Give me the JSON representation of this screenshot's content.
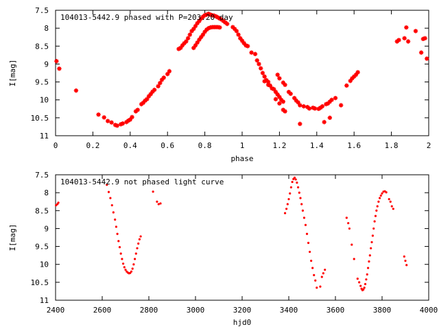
{
  "chart_data": [
    {
      "type": "scatter",
      "title": "104013-5442.9 phased with P=203.20 day",
      "xlabel": "phase",
      "ylabel": "I[mag]",
      "xlim": [
        0,
        2
      ],
      "ylim": [
        11,
        7.5
      ],
      "y_inverted": true,
      "xticks": [
        "0",
        "0.2",
        "0.4",
        "0.6",
        "0.8",
        "1",
        "1.2",
        "1.4",
        "1.6",
        "1.8",
        "2"
      ],
      "xtick_values": [
        0,
        0.2,
        0.4,
        0.6,
        0.8,
        1.0,
        1.2,
        1.4,
        1.6,
        1.8,
        2.0
      ],
      "yticks": [
        "7.5",
        "8",
        "8.5",
        "9",
        "9.5",
        "10",
        "10.5",
        "11"
      ],
      "ytick_values": [
        7.5,
        8,
        8.5,
        9,
        9.5,
        10,
        10.5,
        11
      ],
      "marker": "star",
      "marker_color": "#ff0000",
      "points": [
        [
          0.005,
          8.92
        ],
        [
          0.02,
          9.13
        ],
        [
          0.11,
          9.74
        ],
        [
          0.23,
          10.41
        ],
        [
          0.26,
          10.49
        ],
        [
          0.28,
          10.59
        ],
        [
          0.3,
          10.63
        ],
        [
          0.32,
          10.7
        ],
        [
          0.33,
          10.72
        ],
        [
          0.35,
          10.68
        ],
        [
          0.36,
          10.66
        ],
        [
          0.38,
          10.62
        ],
        [
          0.39,
          10.58
        ],
        [
          0.4,
          10.55
        ],
        [
          0.41,
          10.48
        ],
        [
          0.43,
          10.32
        ],
        [
          0.44,
          10.28
        ],
        [
          0.46,
          10.12
        ],
        [
          0.47,
          10.08
        ],
        [
          0.48,
          10.02
        ],
        [
          0.49,
          9.98
        ],
        [
          0.5,
          9.9
        ],
        [
          0.51,
          9.84
        ],
        [
          0.52,
          9.77
        ],
        [
          0.53,
          9.72
        ],
        [
          0.55,
          9.62
        ],
        [
          0.56,
          9.53
        ],
        [
          0.57,
          9.44
        ],
        [
          0.58,
          9.38
        ],
        [
          0.6,
          9.28
        ],
        [
          0.61,
          9.2
        ],
        [
          0.66,
          8.58
        ],
        [
          0.67,
          8.55
        ],
        [
          0.68,
          8.48
        ],
        [
          0.69,
          8.42
        ],
        [
          0.7,
          8.37
        ],
        [
          0.71,
          8.28
        ],
        [
          0.72,
          8.18
        ],
        [
          0.73,
          8.08
        ],
        [
          0.74,
          8.02
        ],
        [
          0.75,
          7.94
        ],
        [
          0.76,
          7.86
        ],
        [
          0.77,
          7.8
        ],
        [
          0.78,
          7.73
        ],
        [
          0.79,
          7.68
        ],
        [
          0.8,
          7.64
        ],
        [
          0.81,
          7.62
        ],
        [
          0.82,
          7.6
        ],
        [
          0.83,
          7.62
        ],
        [
          0.84,
          7.64
        ],
        [
          0.85,
          7.65
        ],
        [
          0.86,
          7.67
        ],
        [
          0.87,
          7.7
        ],
        [
          0.88,
          7.73
        ],
        [
          0.89,
          7.76
        ],
        [
          0.9,
          7.8
        ],
        [
          0.91,
          7.84
        ],
        [
          0.92,
          7.88
        ],
        [
          0.74,
          8.55
        ],
        [
          0.75,
          8.48
        ],
        [
          0.76,
          8.4
        ],
        [
          0.77,
          8.32
        ],
        [
          0.78,
          8.25
        ],
        [
          0.79,
          8.18
        ],
        [
          0.8,
          8.1
        ],
        [
          0.81,
          8.04
        ],
        [
          0.82,
          8.0
        ],
        [
          0.83,
          7.98
        ],
        [
          0.84,
          7.97
        ],
        [
          0.85,
          7.97
        ],
        [
          0.86,
          7.97
        ],
        [
          0.87,
          7.97
        ],
        [
          0.88,
          7.98
        ],
        [
          0.95,
          7.97
        ],
        [
          0.96,
          8.02
        ],
        [
          0.97,
          8.08
        ],
        [
          0.98,
          8.18
        ],
        [
          0.99,
          8.28
        ],
        [
          1.0,
          8.35
        ],
        [
          1.01,
          8.42
        ],
        [
          1.02,
          8.48
        ],
        [
          1.03,
          8.5
        ],
        [
          1.05,
          8.68
        ],
        [
          1.07,
          8.72
        ],
        [
          1.08,
          8.9
        ],
        [
          1.09,
          9.0
        ],
        [
          1.1,
          9.12
        ],
        [
          1.11,
          9.25
        ],
        [
          1.12,
          9.35
        ],
        [
          1.13,
          9.45
        ],
        [
          1.14,
          9.5
        ],
        [
          1.15,
          9.6
        ],
        [
          1.17,
          9.7
        ],
        [
          1.18,
          9.78
        ],
        [
          1.19,
          9.85
        ],
        [
          1.2,
          9.92
        ],
        [
          1.21,
          10.0
        ],
        [
          1.22,
          10.05
        ],
        [
          1.12,
          9.48
        ],
        [
          1.14,
          9.58
        ],
        [
          1.16,
          9.68
        ],
        [
          1.18,
          9.98
        ],
        [
          1.2,
          10.1
        ],
        [
          1.22,
          10.28
        ],
        [
          1.23,
          10.32
        ],
        [
          1.19,
          9.3
        ],
        [
          1.2,
          9.4
        ],
        [
          1.22,
          9.52
        ],
        [
          1.23,
          9.58
        ],
        [
          1.25,
          9.78
        ],
        [
          1.26,
          9.83
        ],
        [
          1.28,
          9.95
        ],
        [
          1.29,
          10.02
        ],
        [
          1.3,
          10.07
        ],
        [
          1.31,
          10.15
        ],
        [
          1.33,
          10.18
        ],
        [
          1.35,
          10.2
        ],
        [
          1.36,
          10.24
        ],
        [
          1.38,
          10.22
        ],
        [
          1.39,
          10.24
        ],
        [
          1.41,
          10.25
        ],
        [
          1.42,
          10.22
        ],
        [
          1.43,
          10.18
        ],
        [
          1.45,
          10.12
        ],
        [
          1.46,
          10.1
        ],
        [
          1.47,
          10.05
        ],
        [
          1.48,
          10.0
        ],
        [
          1.5,
          9.95
        ],
        [
          1.31,
          10.67
        ],
        [
          1.44,
          10.62
        ],
        [
          1.47,
          10.5
        ],
        [
          1.53,
          10.15
        ],
        [
          1.56,
          9.6
        ],
        [
          1.58,
          9.47
        ],
        [
          1.59,
          9.4
        ],
        [
          1.6,
          9.35
        ],
        [
          1.61,
          9.3
        ],
        [
          1.62,
          9.23
        ],
        [
          1.83,
          8.37
        ],
        [
          1.84,
          8.33
        ],
        [
          1.87,
          8.28
        ],
        [
          1.88,
          7.98
        ],
        [
          1.89,
          8.37
        ],
        [
          1.93,
          8.08
        ],
        [
          1.96,
          8.68
        ],
        [
          1.97,
          8.3
        ],
        [
          1.98,
          8.28
        ],
        [
          1.99,
          8.85
        ]
      ]
    },
    {
      "type": "scatter",
      "title": "104013-5442.9 not phased light curve",
      "xlabel": "hjd0",
      "ylabel": "I[mag]",
      "xlim": [
        2400,
        4000
      ],
      "ylim": [
        11,
        7.5
      ],
      "y_inverted": true,
      "xticks": [
        "2400",
        "2600",
        "2800",
        "3000",
        "3200",
        "3400",
        "3600",
        "3800",
        "4000"
      ],
      "xtick_values": [
        2400,
        2600,
        2800,
        3000,
        3200,
        3400,
        3600,
        3800,
        4000
      ],
      "yticks": [
        "7.5",
        "8",
        "8.5",
        "9",
        "9.5",
        "10",
        "10.5",
        "11"
      ],
      "ytick_values": [
        7.5,
        8,
        8.5,
        9,
        9.5,
        10,
        10.5,
        11
      ],
      "marker": "dot",
      "marker_color": "#ff0000",
      "points": [
        [
          2402,
          8.35
        ],
        [
          2408,
          8.32
        ],
        [
          2412,
          8.28
        ],
        [
          2620,
          7.78
        ],
        [
          2628,
          7.98
        ],
        [
          2635,
          8.15
        ],
        [
          2642,
          8.35
        ],
        [
          2648,
          8.55
        ],
        [
          2655,
          8.75
        ],
        [
          2660,
          8.95
        ],
        [
          2665,
          9.15
        ],
        [
          2670,
          9.35
        ],
        [
          2675,
          9.52
        ],
        [
          2680,
          9.7
        ],
        [
          2685,
          9.85
        ],
        [
          2690,
          9.98
        ],
        [
          2695,
          10.08
        ],
        [
          2700,
          10.15
        ],
        [
          2705,
          10.2
        ],
        [
          2710,
          10.23
        ],
        [
          2715,
          10.25
        ],
        [
          2720,
          10.24
        ],
        [
          2725,
          10.2
        ],
        [
          2730,
          10.12
        ],
        [
          2735,
          10.0
        ],
        [
          2740,
          9.85
        ],
        [
          2745,
          9.7
        ],
        [
          2750,
          9.55
        ],
        [
          2755,
          9.42
        ],
        [
          2760,
          9.3
        ],
        [
          2765,
          9.22
        ],
        [
          2818,
          7.97
        ],
        [
          2835,
          8.25
        ],
        [
          2842,
          8.32
        ],
        [
          2850,
          8.3
        ],
        [
          3384,
          8.57
        ],
        [
          3390,
          8.45
        ],
        [
          3395,
          8.32
        ],
        [
          3400,
          8.18
        ],
        [
          3405,
          8.02
        ],
        [
          3410,
          7.85
        ],
        [
          3415,
          7.7
        ],
        [
          3420,
          7.62
        ],
        [
          3425,
          7.58
        ],
        [
          3430,
          7.63
        ],
        [
          3435,
          7.72
        ],
        [
          3440,
          7.85
        ],
        [
          3445,
          8.0
        ],
        [
          3450,
          8.15
        ],
        [
          3455,
          8.32
        ],
        [
          3460,
          8.5
        ],
        [
          3466,
          8.7
        ],
        [
          3472,
          8.9
        ],
        [
          3478,
          9.15
        ],
        [
          3484,
          9.4
        ],
        [
          3490,
          9.65
        ],
        [
          3496,
          9.9
        ],
        [
          3502,
          10.1
        ],
        [
          3508,
          10.3
        ],
        [
          3514,
          10.45
        ],
        [
          3520,
          10.65
        ],
        [
          3535,
          10.62
        ],
        [
          3542,
          10.35
        ],
        [
          3548,
          10.25
        ],
        [
          3555,
          10.15
        ],
        [
          3648,
          8.7
        ],
        [
          3655,
          8.85
        ],
        [
          3660,
          9.0
        ],
        [
          3670,
          9.45
        ],
        [
          3680,
          9.85
        ],
        [
          3695,
          10.4
        ],
        [
          3702,
          10.5
        ],
        [
          3708,
          10.6
        ],
        [
          3712,
          10.68
        ],
        [
          3716,
          10.72
        ],
        [
          3720,
          10.7
        ],
        [
          3724,
          10.65
        ],
        [
          3728,
          10.55
        ],
        [
          3732,
          10.42
        ],
        [
          3736,
          10.28
        ],
        [
          3740,
          10.1
        ],
        [
          3744,
          9.92
        ],
        [
          3748,
          9.75
        ],
        [
          3752,
          9.55
        ],
        [
          3756,
          9.38
        ],
        [
          3760,
          9.2
        ],
        [
          3764,
          9.0
        ],
        [
          3768,
          8.8
        ],
        [
          3772,
          8.65
        ],
        [
          3776,
          8.5
        ],
        [
          3780,
          8.38
        ],
        [
          3785,
          8.25
        ],
        [
          3790,
          8.15
        ],
        [
          3795,
          8.08
        ],
        [
          3800,
          8.02
        ],
        [
          3806,
          7.97
        ],
        [
          3812,
          7.96
        ],
        [
          3818,
          7.99
        ],
        [
          3830,
          8.18
        ],
        [
          3836,
          8.25
        ],
        [
          3842,
          8.38
        ],
        [
          3848,
          8.45
        ],
        [
          3895,
          9.78
        ],
        [
          3900,
          9.9
        ],
        [
          3905,
          10.02
        ]
      ]
    }
  ]
}
